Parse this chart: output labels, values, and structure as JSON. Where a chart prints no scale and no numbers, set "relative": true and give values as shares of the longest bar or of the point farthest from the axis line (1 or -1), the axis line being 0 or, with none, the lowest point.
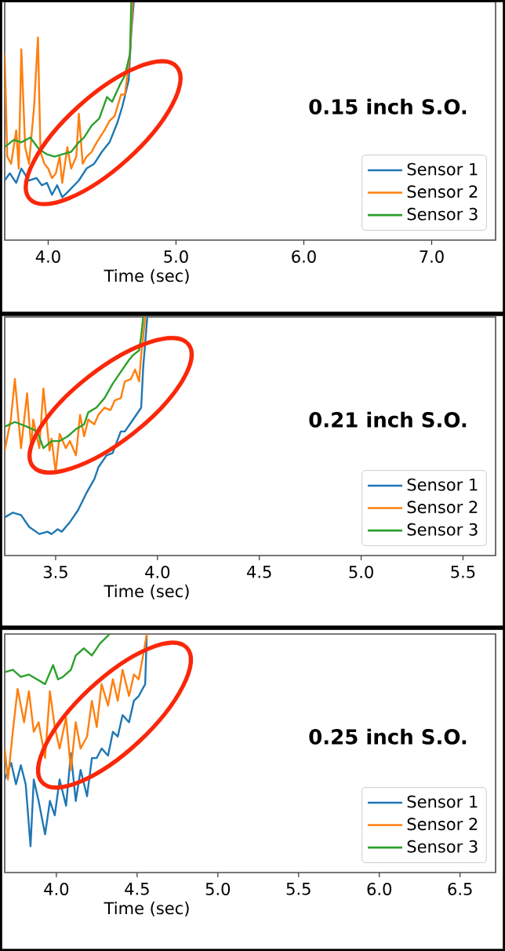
{
  "chart_data": [
    {
      "type": "line",
      "title": "0.15 inch S.O.",
      "xlabel": "Time (sec)",
      "relative": true,
      "legend": "bottom right",
      "xlim": [
        3.66,
        7.5
      ],
      "xticks": [
        {
          "value": 4,
          "label": "4.0"
        },
        {
          "value": 5,
          "label": "5.0"
        },
        {
          "value": 6,
          "label": "6.0"
        },
        {
          "value": 7,
          "label": "7.0"
        }
      ],
      "series": [
        {
          "name": "Sensor 1",
          "color": "#1f77b4",
          "x": [
            3.66,
            3.7,
            3.75,
            3.79,
            3.85,
            3.91,
            3.95,
            3.99,
            4.03,
            4.07,
            4.11,
            4.15,
            4.24,
            4.3,
            4.36,
            4.42,
            4.48,
            4.54,
            4.58,
            4.63,
            4.65,
            4.67
          ],
          "values": [
            0.25,
            0.28,
            0.24,
            0.3,
            0.25,
            0.26,
            0.23,
            0.24,
            0.19,
            0.23,
            0.18,
            0.2,
            0.25,
            0.3,
            0.32,
            0.37,
            0.41,
            0.49,
            0.56,
            0.67,
            0.87,
            1.0
          ]
        },
        {
          "name": "Sensor 2",
          "color": "#ff7f0e",
          "x": [
            3.66,
            3.68,
            3.71,
            3.75,
            3.77,
            3.79,
            3.82,
            3.85,
            3.89,
            3.92,
            3.94,
            3.97,
            4.0,
            4.03,
            4.06,
            4.09,
            4.11,
            4.15,
            4.18,
            4.22,
            4.24,
            4.27,
            4.3,
            4.34,
            4.38,
            4.44,
            4.48,
            4.52,
            4.57,
            4.6,
            4.64,
            4.66
          ],
          "values": [
            0.78,
            0.35,
            0.32,
            0.46,
            0.3,
            0.8,
            0.39,
            0.32,
            0.56,
            0.85,
            0.37,
            0.32,
            0.3,
            0.26,
            0.28,
            0.35,
            0.24,
            0.39,
            0.3,
            0.35,
            0.53,
            0.32,
            0.35,
            0.37,
            0.41,
            0.46,
            0.5,
            0.52,
            0.61,
            0.61,
            0.78,
            1.0
          ]
        },
        {
          "name": "Sensor 3",
          "color": "#2ca02c",
          "x": [
            3.66,
            3.73,
            3.79,
            3.86,
            3.93,
            3.99,
            4.05,
            4.11,
            4.18,
            4.24,
            4.28,
            4.34,
            4.4,
            4.46,
            4.5,
            4.56,
            4.6,
            4.64,
            4.65
          ],
          "values": [
            0.39,
            0.42,
            0.41,
            0.43,
            0.38,
            0.36,
            0.35,
            0.36,
            0.37,
            0.41,
            0.43,
            0.48,
            0.51,
            0.6,
            0.58,
            0.65,
            0.69,
            0.78,
            1.0
          ]
        }
      ]
    },
    {
      "type": "line",
      "title": "0.21 inch S.O.",
      "xlabel": "Time (sec)",
      "relative": true,
      "legend": "bottom right",
      "xlim": [
        3.25,
        5.66
      ],
      "xticks": [
        3.5,
        {
          "value": 4,
          "label": "4.0"
        },
        4.5,
        {
          "value": 5,
          "label": "5.0"
        },
        5.5
      ],
      "series": [
        {
          "name": "Sensor 1",
          "color": "#1f77b4",
          "x": [
            3.25,
            3.29,
            3.33,
            3.37,
            3.42,
            3.46,
            3.48,
            3.51,
            3.53,
            3.57,
            3.61,
            3.65,
            3.69,
            3.71,
            3.75,
            3.78,
            3.82,
            3.84,
            3.88,
            3.92,
            3.93,
            3.95
          ],
          "values": [
            0.16,
            0.18,
            0.17,
            0.12,
            0.09,
            0.1,
            0.09,
            0.11,
            0.1,
            0.14,
            0.19,
            0.26,
            0.32,
            0.37,
            0.42,
            0.43,
            0.52,
            0.52,
            0.57,
            0.62,
            0.79,
            1.0
          ]
        },
        {
          "name": "Sensor 2",
          "color": "#ff7f0e",
          "x": [
            3.25,
            3.28,
            3.3,
            3.33,
            3.36,
            3.38,
            3.39,
            3.42,
            3.44,
            3.47,
            3.48,
            3.5,
            3.52,
            3.55,
            3.57,
            3.6,
            3.62,
            3.64,
            3.66,
            3.69,
            3.71,
            3.74,
            3.77,
            3.79,
            3.82,
            3.84,
            3.87,
            3.89,
            3.91,
            3.92,
            3.94
          ],
          "values": [
            0.44,
            0.57,
            0.74,
            0.45,
            0.68,
            0.45,
            0.57,
            0.45,
            0.7,
            0.44,
            0.49,
            0.35,
            0.51,
            0.45,
            0.48,
            0.42,
            0.59,
            0.5,
            0.57,
            0.55,
            0.59,
            0.62,
            0.61,
            0.65,
            0.66,
            0.73,
            0.74,
            0.78,
            0.73,
            0.84,
            1.0
          ]
        },
        {
          "name": "Sensor 3",
          "color": "#2ca02c",
          "x": [
            3.25,
            3.3,
            3.36,
            3.41,
            3.44,
            3.48,
            3.52,
            3.56,
            3.6,
            3.64,
            3.66,
            3.7,
            3.74,
            3.78,
            3.82,
            3.86,
            3.88,
            3.91,
            3.92,
            3.93
          ],
          "values": [
            0.54,
            0.56,
            0.54,
            0.52,
            0.45,
            0.48,
            0.48,
            0.5,
            0.53,
            0.55,
            0.6,
            0.62,
            0.66,
            0.72,
            0.77,
            0.82,
            0.84,
            0.86,
            0.92,
            1.0
          ]
        }
      ]
    },
    {
      "type": "line",
      "title": "0.25 inch S.O.",
      "xlabel": "Time (sec)",
      "relative": true,
      "legend": "bottom right",
      "xlim": [
        3.68,
        6.72
      ],
      "xticks": [
        {
          "value": 4,
          "label": "4.0"
        },
        4.5,
        {
          "value": 5,
          "label": "5.0"
        },
        5.5,
        {
          "value": 6,
          "label": "6.0"
        },
        6.5
      ],
      "series": [
        {
          "name": "Sensor 1",
          "color": "#1f77b4",
          "x": [
            3.68,
            3.72,
            3.75,
            3.78,
            3.81,
            3.84,
            3.86,
            3.89,
            3.93,
            3.96,
            3.99,
            4.02,
            4.06,
            4.09,
            4.12,
            4.15,
            4.19,
            4.22,
            4.25,
            4.28,
            4.32,
            4.35,
            4.38,
            4.41,
            4.45,
            4.48,
            4.51,
            4.55,
            4.56
          ],
          "values": [
            0.39,
            0.46,
            0.37,
            0.45,
            0.37,
            0.11,
            0.39,
            0.3,
            0.16,
            0.3,
            0.24,
            0.39,
            0.28,
            0.5,
            0.3,
            0.43,
            0.32,
            0.48,
            0.48,
            0.52,
            0.49,
            0.59,
            0.57,
            0.66,
            0.63,
            0.72,
            0.74,
            0.79,
            1.0
          ]
        },
        {
          "name": "Sensor 2",
          "color": "#ff7f0e",
          "x": [
            3.68,
            3.7,
            3.73,
            3.76,
            3.8,
            3.83,
            3.86,
            3.89,
            3.93,
            3.96,
            3.99,
            4.02,
            4.06,
            4.09,
            4.12,
            4.15,
            4.19,
            4.22,
            4.25,
            4.28,
            4.32,
            4.35,
            4.38,
            4.41,
            4.45,
            4.48,
            4.51,
            4.54,
            4.56
          ],
          "values": [
            0.52,
            0.39,
            0.59,
            0.77,
            0.63,
            0.76,
            0.59,
            0.63,
            0.48,
            0.76,
            0.61,
            0.52,
            0.65,
            0.43,
            0.63,
            0.52,
            0.57,
            0.72,
            0.61,
            0.79,
            0.7,
            0.81,
            0.72,
            0.85,
            0.74,
            0.83,
            0.81,
            0.92,
            1.0
          ]
        },
        {
          "name": "Sensor 3",
          "color": "#2ca02c",
          "x": [
            3.68,
            3.73,
            3.78,
            3.83,
            3.88,
            3.93,
            3.98,
            4.01,
            4.04,
            4.09,
            4.12,
            4.17,
            4.22,
            4.27,
            4.3,
            4.33
          ],
          "values": [
            0.84,
            0.85,
            0.82,
            0.83,
            0.81,
            0.79,
            0.87,
            0.81,
            0.82,
            0.85,
            0.91,
            0.94,
            0.91,
            0.96,
            0.98,
            1.0
          ]
        }
      ]
    }
  ]
}
